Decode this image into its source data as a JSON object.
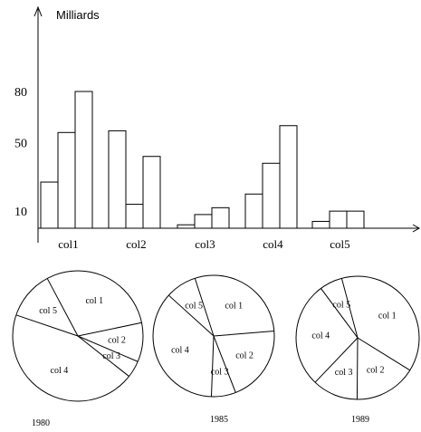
{
  "chart_data": [
    {
      "type": "bar",
      "ylabel": "Milliards",
      "yticks": [
        10,
        50,
        80
      ],
      "categories": [
        "col1",
        "col2",
        "col3",
        "col4",
        "col5"
      ],
      "series": [
        {
          "values": [
            27,
            57,
            2,
            20,
            4
          ]
        },
        {
          "values": [
            56,
            14,
            8,
            38,
            10
          ]
        },
        {
          "values": [
            80,
            42,
            12,
            60,
            10
          ]
        }
      ]
    },
    {
      "type": "pie",
      "title": "1980",
      "labels": [
        "col 1",
        "col 2",
        "col 3",
        "col 4",
        "col 5"
      ],
      "values": [
        29.5,
        9.7,
        4.2,
        44.6,
        12.0
      ]
    },
    {
      "type": "pie",
      "title": "1985",
      "labels": [
        "col 1",
        "col 2",
        "col 3",
        "col 4",
        "col 5"
      ],
      "values": [
        28.7,
        20.4,
        6.5,
        36.1,
        8.3
      ]
    },
    {
      "type": "pie",
      "title": "1989",
      "labels": [
        "col 1",
        "col 2",
        "col 3",
        "col 4",
        "col 5"
      ],
      "values": [
        38.0,
        16.3,
        12.0,
        27.7,
        6.0
      ]
    }
  ]
}
